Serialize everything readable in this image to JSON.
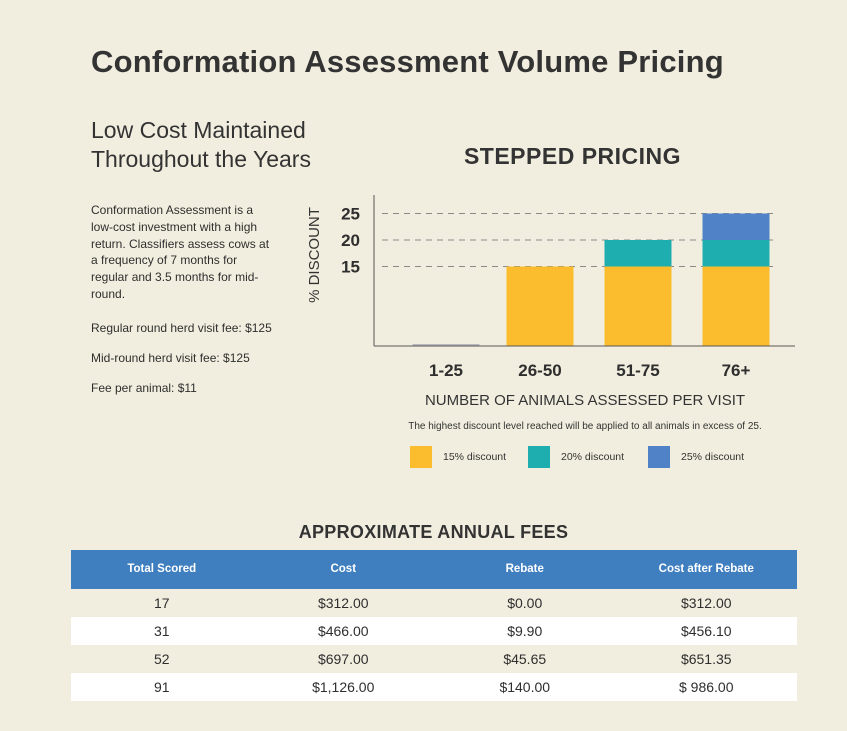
{
  "page": {
    "title": "Conformation Assessment Volume Pricing",
    "subtitle_line1": "Low Cost Maintained",
    "subtitle_line2": "Throughout the Years",
    "description": "Conformation Assessment is a low-cost investment with a high return. Classifiers assess cows at a frequency of 7 months for regular and 3.5 months for mid-round.",
    "regular_fee": "Regular round herd visit fee: $125",
    "midround_fee": "Mid-round herd visit fee: $125",
    "animal_fee": "Fee per animal: $11"
  },
  "chart_data": {
    "type": "bar",
    "stacked": true,
    "title": "STEPPED PRICING",
    "xlabel": "NUMBER OF ANIMALS ASSESSED PER VISIT",
    "ylabel": "% DISCOUNT",
    "categories": [
      "1-25",
      "26-50",
      "51-75",
      "76+"
    ],
    "yticks": [
      15,
      20,
      25
    ],
    "ylim": [
      0,
      28
    ],
    "grid": "dashed at 15, 20, 25",
    "series": [
      {
        "name": "15% discount",
        "color": "#fbbc2e",
        "values": [
          0,
          15,
          15,
          15
        ]
      },
      {
        "name": "20% discount",
        "color": "#1faeaf",
        "values": [
          0,
          0,
          5,
          5
        ]
      },
      {
        "name": "25% discount",
        "color": "#4f82c6",
        "values": [
          0,
          0,
          0,
          5
        ]
      }
    ],
    "note": "The highest discount level reached will be applied to all animals in excess of 25."
  },
  "fees": {
    "title": "APPROXIMATE ANNUAL FEES",
    "headers": [
      "Total Scored",
      "Cost",
      "Rebate",
      "Cost after Rebate"
    ],
    "rows": [
      [
        "17",
        "$312.00",
        "$0.00",
        "$312.00"
      ],
      [
        "31",
        "$466.00",
        "$9.90",
        "$456.10"
      ],
      [
        "52",
        "$697.00",
        "$45.65",
        "$651.35"
      ],
      [
        "91",
        "$1,126.00",
        "$140.00",
        "$ 986.00"
      ]
    ],
    "header_color": "#3f7fc0"
  }
}
